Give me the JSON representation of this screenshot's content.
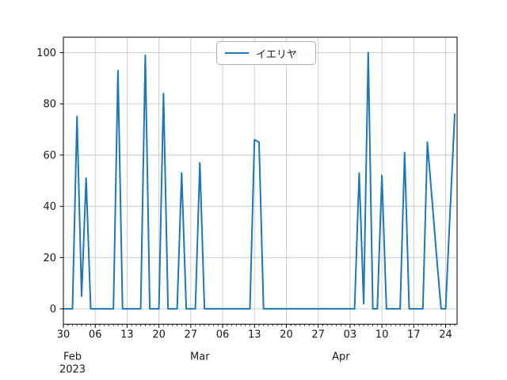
{
  "chart_data": {
    "type": "line",
    "title": "",
    "xlabel": "",
    "ylabel": "",
    "grid": true,
    "legend_position": "upper center",
    "accent_color": "#1f77b4",
    "grid_color": "#c9c9c9",
    "axis_color": "#000000",
    "ylim": [
      -6,
      106
    ],
    "y_ticks": [
      0,
      20,
      40,
      60,
      80,
      100
    ],
    "x_start_date": "2023-01-30",
    "x_end_date": "2023-04-26",
    "x_step": "1 day",
    "x_major_ticks": [
      {
        "date": "2023-01-30",
        "label": "30"
      },
      {
        "date": "2023-02-06",
        "label": "06"
      },
      {
        "date": "2023-02-13",
        "label": "13"
      },
      {
        "date": "2023-02-20",
        "label": "20"
      },
      {
        "date": "2023-02-27",
        "label": "27"
      },
      {
        "date": "2023-03-06",
        "label": "06"
      },
      {
        "date": "2023-03-13",
        "label": "13"
      },
      {
        "date": "2023-03-20",
        "label": "20"
      },
      {
        "date": "2023-03-27",
        "label": "27"
      },
      {
        "date": "2023-04-03",
        "label": "03"
      },
      {
        "date": "2023-04-10",
        "label": "10"
      },
      {
        "date": "2023-04-17",
        "label": "17"
      },
      {
        "date": "2023-04-24",
        "label": "24"
      }
    ],
    "x_month_labels": [
      {
        "date": "2023-02-01",
        "label": "Feb",
        "year": "2023"
      },
      {
        "date": "2023-03-01",
        "label": "Mar",
        "year": ""
      },
      {
        "date": "2023-04-01",
        "label": "Apr",
        "year": ""
      }
    ],
    "series": [
      {
        "name": "イエリヤ",
        "color": "#1f77b4",
        "dates": [
          "01-30",
          "01-31",
          "02-01",
          "02-02",
          "02-03",
          "02-04",
          "02-05",
          "02-06",
          "02-07",
          "02-08",
          "02-09",
          "02-10",
          "02-11",
          "02-12",
          "02-13",
          "02-14",
          "02-15",
          "02-16",
          "02-17",
          "02-18",
          "02-19",
          "02-20",
          "02-21",
          "02-22",
          "02-23",
          "02-24",
          "02-25",
          "02-26",
          "02-27",
          "02-28",
          "03-01",
          "03-02",
          "03-03",
          "03-04",
          "03-05",
          "03-06",
          "03-07",
          "03-08",
          "03-09",
          "03-10",
          "03-11",
          "03-12",
          "03-13",
          "03-14",
          "03-15",
          "03-16",
          "03-17",
          "03-18",
          "03-19",
          "03-20",
          "03-21",
          "03-22",
          "03-23",
          "03-24",
          "03-25",
          "03-26",
          "03-27",
          "03-28",
          "03-29",
          "03-30",
          "03-31",
          "04-01",
          "04-02",
          "04-03",
          "04-04",
          "04-05",
          "04-06",
          "04-07",
          "04-08",
          "04-09",
          "04-10",
          "04-11",
          "04-12",
          "04-13",
          "04-14",
          "04-15",
          "04-16",
          "04-17",
          "04-18",
          "04-19",
          "04-20",
          "04-21",
          "04-22",
          "04-23",
          "04-24",
          "04-25",
          "04-26"
        ],
        "values": [
          0,
          0,
          0,
          75,
          5,
          51,
          0,
          0,
          0,
          0,
          0,
          0,
          93,
          0,
          0,
          0,
          0,
          0,
          99,
          0,
          0,
          0,
          84,
          0,
          0,
          0,
          53,
          0,
          0,
          0,
          57,
          0,
          0,
          0,
          0,
          0,
          0,
          0,
          0,
          0,
          0,
          0,
          66,
          65,
          0,
          0,
          0,
          0,
          0,
          0,
          0,
          0,
          0,
          0,
          0,
          0,
          0,
          0,
          0,
          0,
          0,
          0,
          0,
          0,
          0,
          53,
          2,
          100,
          0,
          0,
          52,
          0,
          0,
          0,
          0,
          61,
          0,
          0,
          0,
          0,
          65,
          43,
          21,
          0,
          0,
          38,
          76
        ]
      }
    ]
  },
  "legend": {
    "label": "イエリヤ"
  }
}
